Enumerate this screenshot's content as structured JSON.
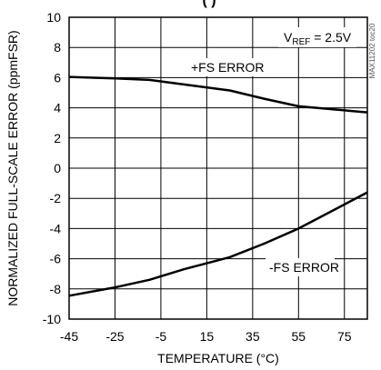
{
  "chart_data": {
    "type": "line",
    "title_partial": "(                  )",
    "xlabel": "TEMPERATURE (°C)",
    "ylabel": "NORMALIZED FULL-SCALE ERROR (ppmFSR)",
    "xlim": [
      -45,
      85
    ],
    "ylim": [
      -10,
      10
    ],
    "x_ticks": [
      "-45",
      "-25",
      "-5",
      "15",
      "35",
      "55",
      "75"
    ],
    "y_ticks": [
      "10",
      "8",
      "6",
      "4",
      "2",
      "0",
      "-2",
      "-4",
      "-6",
      "-8",
      "-10"
    ],
    "grid": true,
    "vref_label": {
      "prefix": "V",
      "sub": "REF",
      "suffix": " = 2.5V"
    },
    "side_id": "MAX11202 toc20",
    "series": [
      {
        "name": "+FS ERROR",
        "x": [
          -45,
          -25,
          -10,
          5,
          25,
          40,
          55,
          70,
          85
        ],
        "y": [
          6.05,
          5.95,
          5.85,
          5.55,
          5.15,
          4.6,
          4.1,
          3.9,
          3.7
        ]
      },
      {
        "name": "-FS ERROR",
        "x": [
          -45,
          -25,
          -10,
          5,
          25,
          40,
          55,
          70,
          85
        ],
        "y": [
          -8.45,
          -7.9,
          -7.4,
          -6.7,
          -5.9,
          -5.0,
          -4.0,
          -2.8,
          -1.6
        ]
      }
    ]
  }
}
